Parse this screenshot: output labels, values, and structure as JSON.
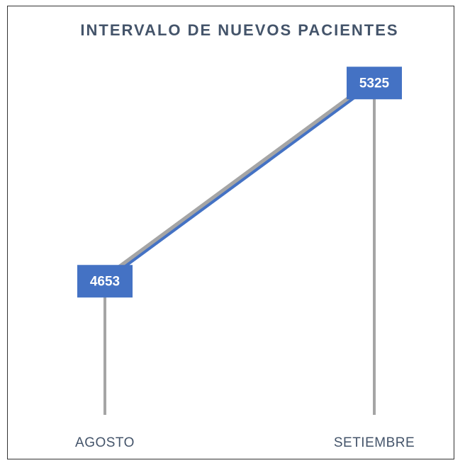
{
  "chart_data": {
    "type": "line",
    "title": "INTERVALO DE NUEVOS PACIENTES",
    "categories": [
      "AGOSTO",
      "SETIEMBRE"
    ],
    "series": [
      {
        "values": [
          4653,
          5325
        ],
        "color": "#4472c4"
      }
    ],
    "ylim": [
      4200,
      5400
    ],
    "drop_lines": true
  }
}
